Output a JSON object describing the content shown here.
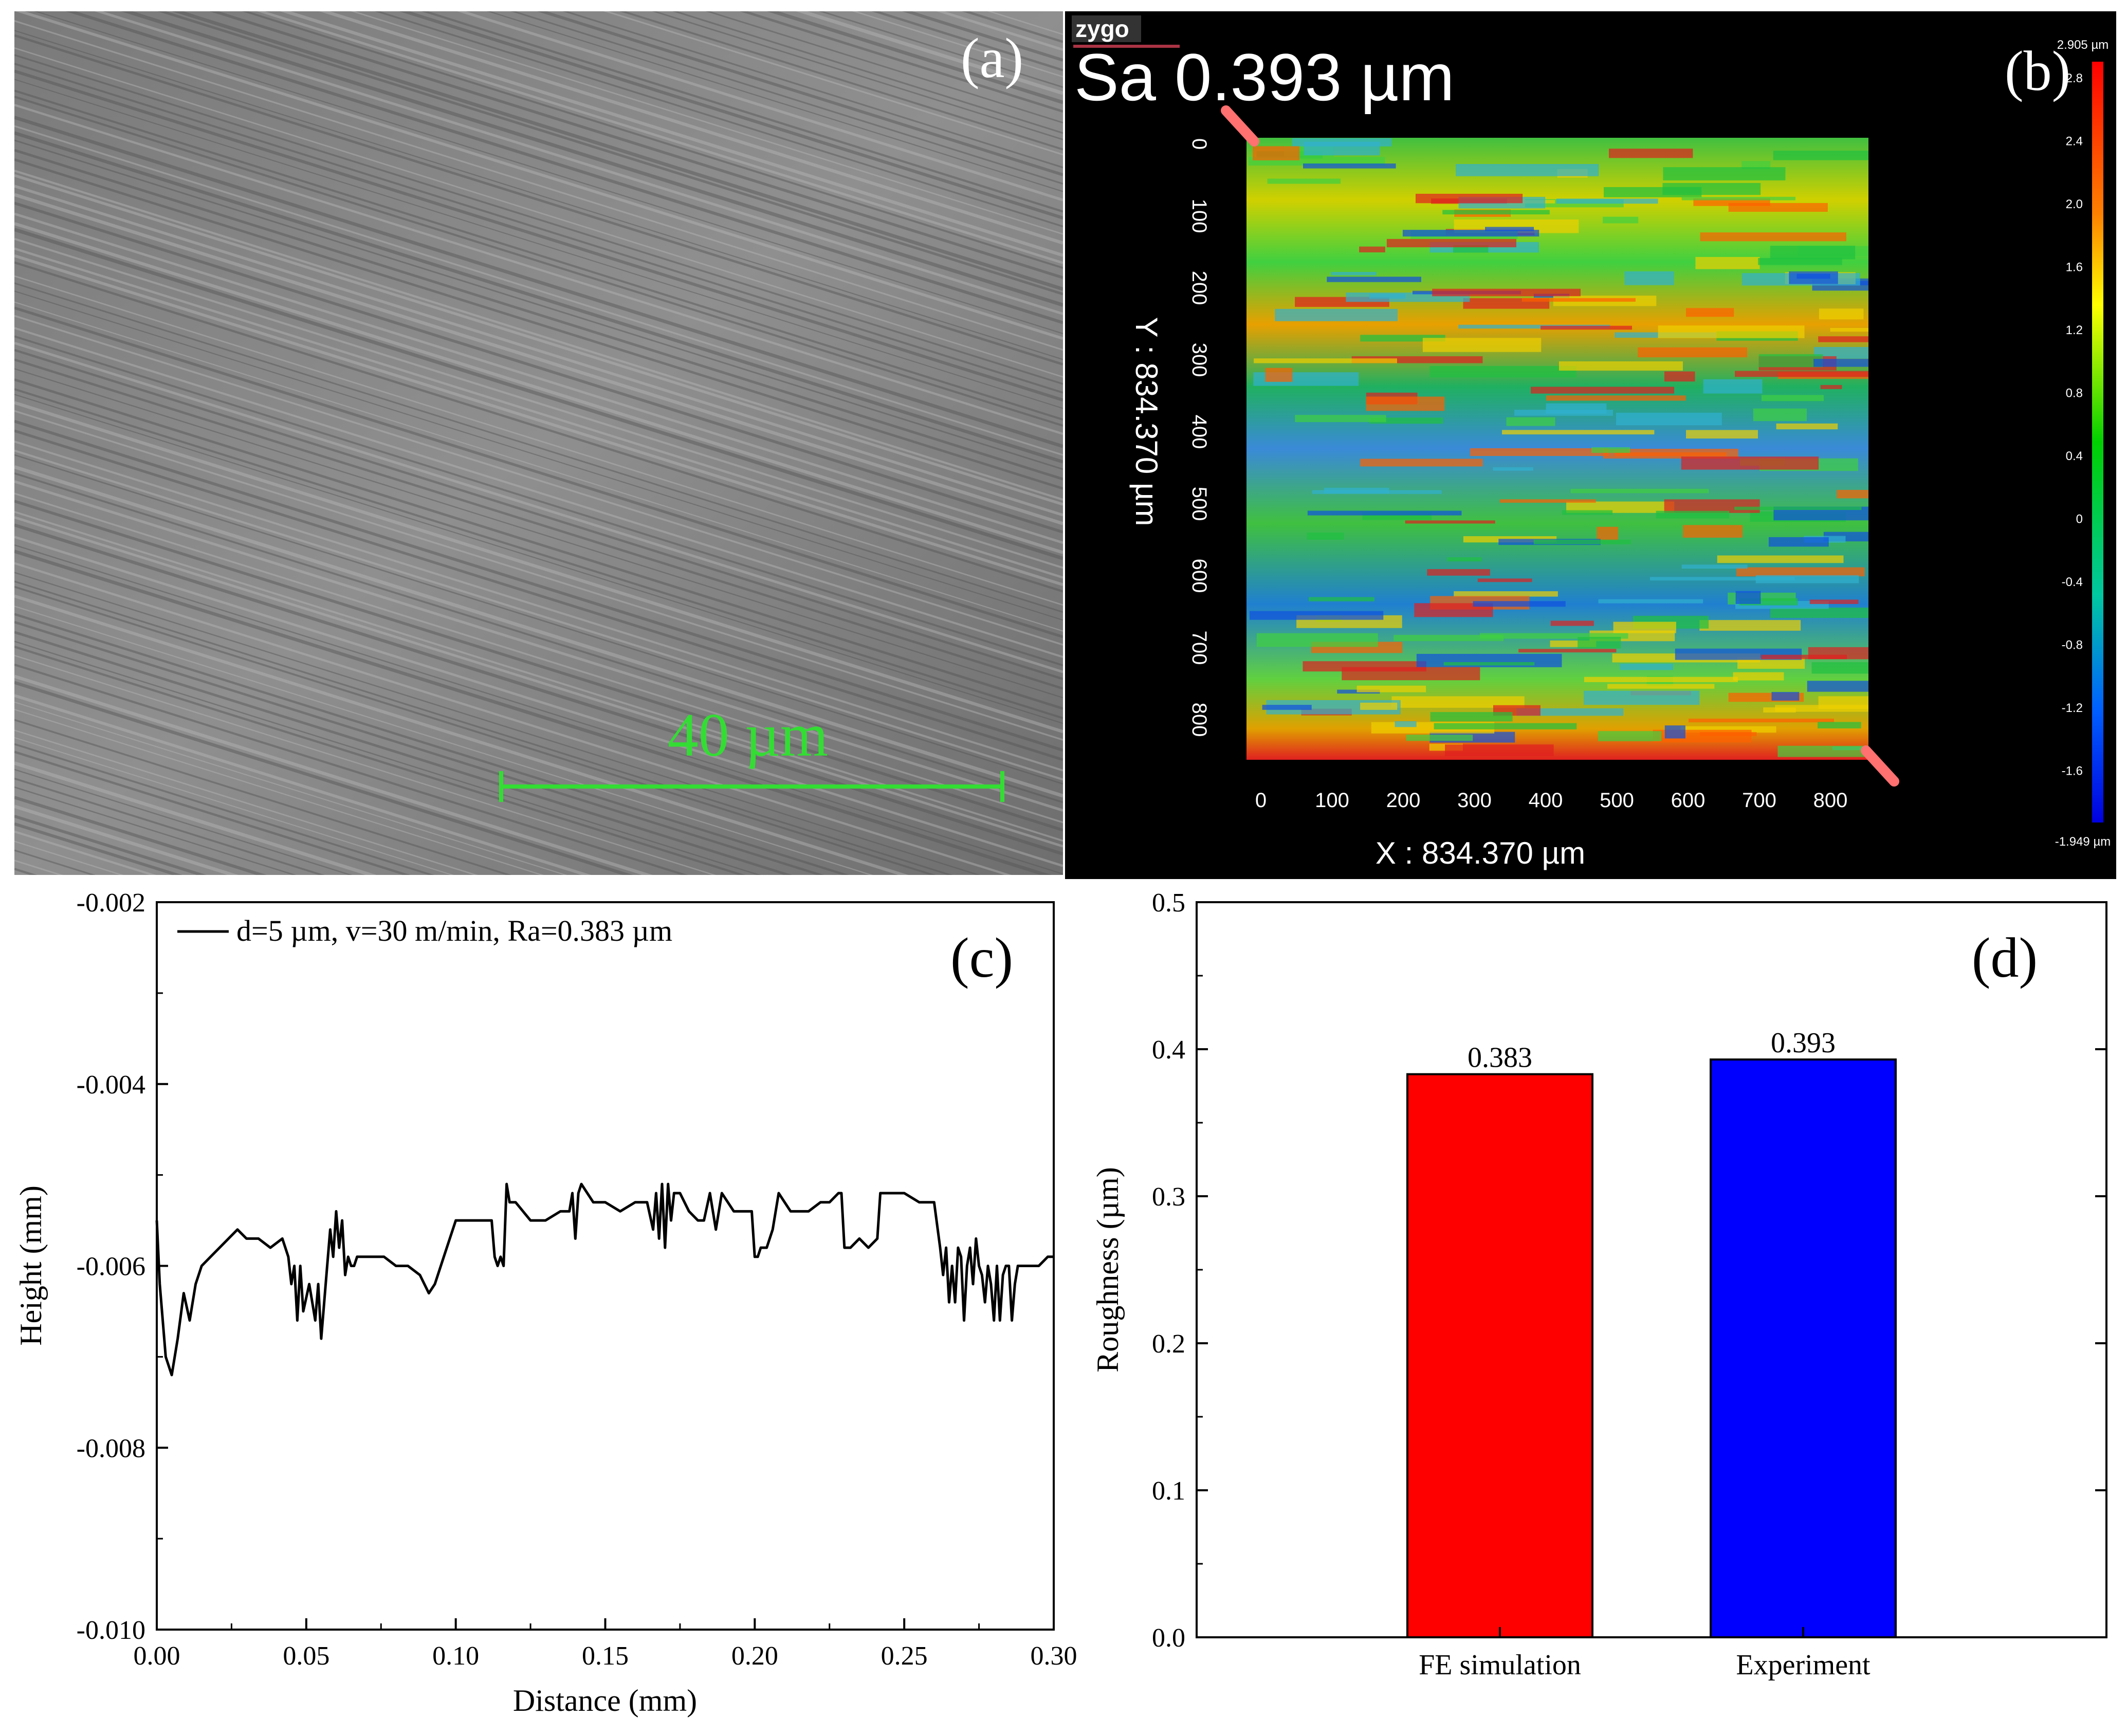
{
  "panels": {
    "a": {
      "label": "(a)",
      "scalebar": "40 µm"
    },
    "b": {
      "label": "(b)",
      "brand": "zygo",
      "sa": "Sa 0.393  µm",
      "x_axis_label": "X : 834.370 µm",
      "y_axis_label": "Y : 834.370 µm",
      "x_ticks": [
        "0",
        "100",
        "200",
        "300",
        "400",
        "500",
        "600",
        "700",
        "800"
      ],
      "y_ticks": [
        "0",
        "100",
        "200",
        "300",
        "400",
        "500",
        "600",
        "700",
        "800"
      ],
      "colorbar_max": "2.905 µm",
      "colorbar_min": "-1.949 µm",
      "colorbar_ticks": [
        "2.8",
        "2.4",
        "2.0",
        "1.6",
        "1.2",
        "0.8",
        "0.4",
        "0",
        "-0.4",
        "-0.8",
        "-1.2",
        "-1.6"
      ]
    },
    "c": {
      "label": "(c)"
    },
    "d": {
      "label": "(d)"
    }
  },
  "chart_data": [
    {
      "type": "line",
      "panel": "c",
      "title": "",
      "xlabel": "Distance (mm)",
      "ylabel": "Height (mm)",
      "xlim": [
        0,
        0.3
      ],
      "ylim": [
        -0.01,
        -0.002
      ],
      "x_ticks": [
        "0.00",
        "0.05",
        "0.10",
        "0.15",
        "0.20",
        "0.25",
        "0.30"
      ],
      "y_ticks": [
        "-0.002",
        "-0.004",
        "-0.006",
        "-0.008",
        "-0.010"
      ],
      "legend": "d=5 µm, v=30 m/min, Ra=0.383 µm",
      "series": [
        {
          "name": "d=5 µm, v=30 m/min, Ra=0.383 µm",
          "x": [
            0.0,
            0.001,
            0.003,
            0.005,
            0.007,
            0.009,
            0.011,
            0.013,
            0.015,
            0.018,
            0.021,
            0.024,
            0.027,
            0.03,
            0.034,
            0.038,
            0.042,
            0.044,
            0.045,
            0.046,
            0.047,
            0.048,
            0.049,
            0.051,
            0.052,
            0.053,
            0.054,
            0.055,
            0.056,
            0.057,
            0.058,
            0.059,
            0.06,
            0.061,
            0.062,
            0.063,
            0.064,
            0.065,
            0.066,
            0.067,
            0.069,
            0.072,
            0.076,
            0.08,
            0.084,
            0.088,
            0.091,
            0.093,
            0.096,
            0.1,
            0.104,
            0.108,
            0.112,
            0.113,
            0.114,
            0.115,
            0.116,
            0.117,
            0.118,
            0.12,
            0.125,
            0.13,
            0.135,
            0.138,
            0.139,
            0.14,
            0.141,
            0.142,
            0.146,
            0.15,
            0.155,
            0.16,
            0.164,
            0.166,
            0.167,
            0.168,
            0.169,
            0.17,
            0.171,
            0.172,
            0.173,
            0.175,
            0.178,
            0.181,
            0.183,
            0.185,
            0.187,
            0.189,
            0.191,
            0.193,
            0.196,
            0.199,
            0.2,
            0.201,
            0.202,
            0.204,
            0.206,
            0.208,
            0.21,
            0.212,
            0.215,
            0.218,
            0.222,
            0.225,
            0.228,
            0.229,
            0.23,
            0.232,
            0.235,
            0.238,
            0.241,
            0.242,
            0.243,
            0.245,
            0.25,
            0.255,
            0.26,
            0.262,
            0.263,
            0.264,
            0.265,
            0.266,
            0.267,
            0.268,
            0.269,
            0.27,
            0.271,
            0.272,
            0.273,
            0.274,
            0.275,
            0.276,
            0.277,
            0.278,
            0.279,
            0.28,
            0.281,
            0.282,
            0.283,
            0.284,
            0.285,
            0.286,
            0.287,
            0.288,
            0.289,
            0.29,
            0.292,
            0.295,
            0.298,
            0.3
          ],
          "values": [
            -0.0055,
            -0.0062,
            -0.007,
            -0.0072,
            -0.0068,
            -0.0063,
            -0.0066,
            -0.0062,
            -0.006,
            -0.0059,
            -0.0058,
            -0.0057,
            -0.0056,
            -0.0057,
            -0.0057,
            -0.0058,
            -0.0057,
            -0.0059,
            -0.0062,
            -0.006,
            -0.0066,
            -0.006,
            -0.0065,
            -0.0062,
            -0.0064,
            -0.0066,
            -0.0062,
            -0.0068,
            -0.0064,
            -0.006,
            -0.0056,
            -0.0059,
            -0.0054,
            -0.0058,
            -0.0055,
            -0.0061,
            -0.0059,
            -0.006,
            -0.006,
            -0.0059,
            -0.0059,
            -0.0059,
            -0.0059,
            -0.006,
            -0.006,
            -0.0061,
            -0.0063,
            -0.0062,
            -0.0059,
            -0.0055,
            -0.0055,
            -0.0055,
            -0.0055,
            -0.0059,
            -0.006,
            -0.0059,
            -0.006,
            -0.0051,
            -0.0053,
            -0.0053,
            -0.0055,
            -0.0055,
            -0.0054,
            -0.0054,
            -0.0052,
            -0.0057,
            -0.0052,
            -0.0051,
            -0.0053,
            -0.0053,
            -0.0054,
            -0.0053,
            -0.0053,
            -0.0056,
            -0.0052,
            -0.0057,
            -0.0051,
            -0.0058,
            -0.0051,
            -0.0055,
            -0.0052,
            -0.0052,
            -0.0054,
            -0.0055,
            -0.0055,
            -0.0052,
            -0.0056,
            -0.0052,
            -0.0053,
            -0.0054,
            -0.0054,
            -0.0054,
            -0.0059,
            -0.0059,
            -0.0058,
            -0.0058,
            -0.0056,
            -0.0052,
            -0.0053,
            -0.0054,
            -0.0054,
            -0.0054,
            -0.0053,
            -0.0053,
            -0.0052,
            -0.0052,
            -0.0058,
            -0.0058,
            -0.0057,
            -0.0058,
            -0.0057,
            -0.0052,
            -0.0052,
            -0.0052,
            -0.0052,
            -0.0053,
            -0.0053,
            -0.0058,
            -0.0061,
            -0.0058,
            -0.0064,
            -0.006,
            -0.0064,
            -0.0058,
            -0.0059,
            -0.0066,
            -0.006,
            -0.0058,
            -0.0062,
            -0.0057,
            -0.006,
            -0.0061,
            -0.0064,
            -0.006,
            -0.0062,
            -0.0066,
            -0.006,
            -0.0066,
            -0.0061,
            -0.006,
            -0.006,
            -0.0066,
            -0.0062,
            -0.006,
            -0.006,
            -0.006,
            -0.006,
            -0.006,
            -0.0059,
            -0.0059
          ]
        }
      ]
    },
    {
      "type": "bar",
      "panel": "d",
      "title": "",
      "xlabel": "",
      "ylabel": "Roughness (µm)",
      "ylim": [
        0.0,
        0.5
      ],
      "y_ticks": [
        "0.0",
        "0.1",
        "0.2",
        "0.3",
        "0.4",
        "0.5"
      ],
      "categories": [
        "FE simulation",
        "Experiment"
      ],
      "values": [
        0.383,
        0.393
      ],
      "value_labels": [
        "0.383",
        "0.393"
      ],
      "colors": [
        "#ff0000",
        "#0000ff"
      ]
    }
  ]
}
